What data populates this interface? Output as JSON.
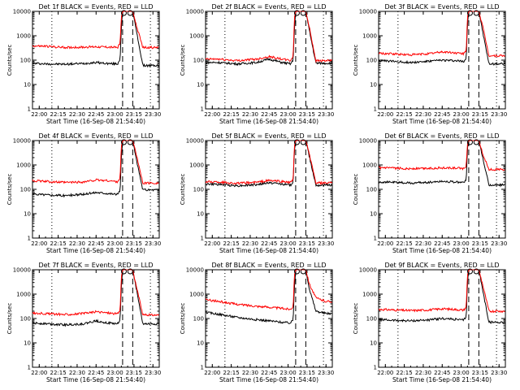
{
  "figure": {
    "background": "#ffffff",
    "events_color": "#000000",
    "lld_color": "#ff0000"
  },
  "chart_data": [
    {
      "type": "line",
      "title": "Det 1f BLACK = Events, RED = LLD",
      "xlabel": "Start Time (16-Sep-08 21:54:40)",
      "ylabel": "Counts/sec",
      "x_ticks": [
        "22:00",
        "22:15",
        "22:30",
        "22:45",
        "23:00",
        "23:15",
        "23:30"
      ],
      "y_ticks": [
        "1",
        "10",
        "100",
        "1000",
        "10000"
      ],
      "y_scale": "log",
      "ylim": [
        1,
        10000
      ],
      "markers": [
        "22:10",
        "23:06",
        "23:14",
        "23:28"
      ],
      "series": [
        {
          "x": [
            "21:54",
            "22:05",
            "22:20",
            "22:35",
            "22:45",
            "22:55",
            "23:02",
            "23:04",
            "23:05",
            "23:06",
            "23:10",
            "23:14",
            "23:17",
            "23:22",
            "23:30"
          ],
          "y": [
            75,
            70,
            68,
            73,
            80,
            72,
            70,
            110,
            2000,
            10000,
            10000,
            10000,
            1500,
            60,
            60
          ]
        },
        {
          "x": [
            "21:54",
            "22:05",
            "22:20",
            "22:35",
            "22:45",
            "22:55",
            "23:02",
            "23:04",
            "23:05",
            "23:06",
            "23:10",
            "23:14",
            "23:17",
            "23:22",
            "23:30"
          ],
          "y": [
            380,
            370,
            330,
            340,
            355,
            340,
            330,
            500,
            6000,
            10000,
            10000,
            10000,
            2500,
            330,
            330
          ]
        }
      ]
    },
    {
      "type": "line",
      "title": "Det 2f BLACK = Events, RED = LLD",
      "xlabel": "Start Time (16-Sep-08 21:54:40)",
      "ylabel": "Counts/sec",
      "x_ticks": [
        "22:00",
        "22:15",
        "22:30",
        "22:45",
        "23:00",
        "23:15",
        "23:30"
      ],
      "y_ticks": [
        "1",
        "10",
        "100",
        "1000",
        "10000"
      ],
      "y_scale": "log",
      "ylim": [
        1,
        10000
      ],
      "markers": [
        "22:10",
        "23:06",
        "23:14",
        "23:28"
      ],
      "series": [
        {
          "x": [
            "21:54",
            "22:05",
            "22:20",
            "22:35",
            "22:45",
            "22:55",
            "23:02",
            "23:04",
            "23:05",
            "23:06",
            "23:10",
            "23:14",
            "23:17",
            "23:22",
            "23:30"
          ],
          "y": [
            80,
            80,
            70,
            80,
            110,
            80,
            70,
            100,
            2000,
            10000,
            10000,
            10000,
            1500,
            75,
            75
          ]
        },
        {
          "x": [
            "21:54",
            "22:05",
            "22:20",
            "22:35",
            "22:45",
            "22:55",
            "23:02",
            "23:04",
            "23:05",
            "23:06",
            "23:10",
            "23:14",
            "23:17",
            "23:22",
            "23:30"
          ],
          "y": [
            110,
            110,
            95,
            110,
            140,
            110,
            95,
            150,
            5000,
            10000,
            10000,
            10000,
            2000,
            95,
            95
          ]
        }
      ]
    },
    {
      "type": "line",
      "title": "Det 3f BLACK = Events, RED = LLD",
      "xlabel": "Start Time (16-Sep-08 21:54:40)",
      "ylabel": "Counts/sec",
      "x_ticks": [
        "22:00",
        "22:15",
        "22:30",
        "22:45",
        "23:00",
        "23:15",
        "23:30"
      ],
      "y_ticks": [
        "1",
        "10",
        "100",
        "1000",
        "10000"
      ],
      "y_scale": "log",
      "ylim": [
        1,
        10000
      ],
      "markers": [
        "22:10",
        "23:06",
        "23:14",
        "23:28"
      ],
      "series": [
        {
          "x": [
            "21:54",
            "22:05",
            "22:20",
            "22:35",
            "22:45",
            "22:55",
            "23:02",
            "23:04",
            "23:05",
            "23:06",
            "23:10",
            "23:14",
            "23:17",
            "23:22",
            "23:30"
          ],
          "y": [
            95,
            90,
            80,
            90,
            100,
            95,
            90,
            120,
            3000,
            10000,
            10000,
            10000,
            1500,
            70,
            70
          ]
        },
        {
          "x": [
            "21:54",
            "22:05",
            "22:20",
            "22:35",
            "22:45",
            "22:55",
            "23:02",
            "23:04",
            "23:05",
            "23:06",
            "23:10",
            "23:14",
            "23:17",
            "23:22",
            "23:30"
          ],
          "y": [
            190,
            180,
            165,
            185,
            220,
            200,
            180,
            250,
            6000,
            10000,
            10000,
            10000,
            2500,
            150,
            150
          ]
        }
      ]
    },
    {
      "type": "line",
      "title": "Det 4f BLACK = Events, RED = LLD",
      "xlabel": "Start Time (16-Sep-08 21:54:40)",
      "ylabel": "Counts/sec",
      "x_ticks": [
        "22:00",
        "22:15",
        "22:30",
        "22:45",
        "23:00",
        "23:15",
        "23:30"
      ],
      "y_ticks": [
        "1",
        "10",
        "100",
        "1000",
        "10000"
      ],
      "y_scale": "log",
      "ylim": [
        1,
        10000
      ],
      "markers": [
        "22:10",
        "23:06",
        "23:14",
        "23:28"
      ],
      "series": [
        {
          "x": [
            "21:54",
            "22:05",
            "22:20",
            "22:35",
            "22:45",
            "22:55",
            "23:02",
            "23:04",
            "23:05",
            "23:06",
            "23:10",
            "23:14",
            "23:17",
            "23:22",
            "23:30"
          ],
          "y": [
            65,
            60,
            55,
            62,
            75,
            68,
            62,
            90,
            2000,
            10000,
            10000,
            10000,
            1500,
            95,
            95
          ]
        },
        {
          "x": [
            "21:54",
            "22:05",
            "22:20",
            "22:35",
            "22:45",
            "22:55",
            "23:02",
            "23:04",
            "23:05",
            "23:06",
            "23:10",
            "23:14",
            "23:17",
            "23:22",
            "23:30"
          ],
          "y": [
            230,
            210,
            190,
            200,
            240,
            225,
            205,
            300,
            6000,
            10000,
            10000,
            10000,
            2500,
            180,
            180
          ]
        }
      ]
    },
    {
      "type": "line",
      "title": "Det 5f BLACK = Events, RED = LLD",
      "xlabel": "Start Time (16-Sep-08 21:54:40)",
      "ylabel": "Counts/sec",
      "x_ticks": [
        "22:00",
        "22:15",
        "22:30",
        "22:45",
        "23:00",
        "23:15",
        "23:30"
      ],
      "y_ticks": [
        "1",
        "10",
        "100",
        "1000",
        "10000"
      ],
      "y_scale": "log",
      "ylim": [
        1,
        10000
      ],
      "markers": [
        "22:10",
        "23:06",
        "23:14",
        "23:28"
      ],
      "series": [
        {
          "x": [
            "21:54",
            "22:05",
            "22:20",
            "22:35",
            "22:45",
            "22:55",
            "23:02",
            "23:04",
            "23:05",
            "23:06",
            "23:10",
            "23:14",
            "23:17",
            "23:22",
            "23:30"
          ],
          "y": [
            165,
            160,
            140,
            155,
            185,
            165,
            150,
            200,
            4000,
            10000,
            10000,
            10000,
            2000,
            150,
            150
          ]
        },
        {
          "x": [
            "21:54",
            "22:05",
            "22:20",
            "22:35",
            "22:45",
            "22:55",
            "23:02",
            "23:04",
            "23:05",
            "23:06",
            "23:10",
            "23:14",
            "23:17",
            "23:22",
            "23:30"
          ],
          "y": [
            205,
            200,
            175,
            195,
            230,
            210,
            190,
            260,
            6000,
            10000,
            10000,
            10000,
            2500,
            180,
            180
          ]
        }
      ]
    },
    {
      "type": "line",
      "title": "Det 6f BLACK = Events, RED = LLD",
      "xlabel": "Start Time (16-Sep-08 21:54:40)",
      "ylabel": "Counts/sec",
      "x_ticks": [
        "22:00",
        "22:15",
        "22:30",
        "22:45",
        "23:00",
        "23:15",
        "23:30"
      ],
      "y_ticks": [
        "1",
        "10",
        "100",
        "1000",
        "10000"
      ],
      "y_scale": "log",
      "ylim": [
        1,
        10000
      ],
      "markers": [
        "22:10",
        "23:06",
        "23:14",
        "23:28"
      ],
      "series": [
        {
          "x": [
            "21:54",
            "22:05",
            "22:20",
            "22:35",
            "22:45",
            "22:55",
            "23:02",
            "23:04",
            "23:05",
            "23:06",
            "23:10",
            "23:14",
            "23:17",
            "23:22",
            "23:30"
          ],
          "y": [
            200,
            195,
            180,
            195,
            215,
            200,
            190,
            250,
            5000,
            10000,
            10000,
            10000,
            2000,
            150,
            150
          ]
        },
        {
          "x": [
            "21:54",
            "22:05",
            "22:20",
            "22:35",
            "22:45",
            "22:55",
            "23:02",
            "23:04",
            "23:05",
            "23:06",
            "23:10",
            "23:14",
            "23:17",
            "23:22",
            "23:30"
          ],
          "y": [
            760,
            740,
            700,
            730,
            760,
            740,
            720,
            900,
            8000,
            10000,
            10000,
            10000,
            3000,
            650,
            650
          ]
        }
      ]
    },
    {
      "type": "line",
      "title": "Det 7f BLACK = Events, RED = LLD",
      "xlabel": "Start Time (16-Sep-08 21:54:40)",
      "ylabel": "Counts/sec",
      "x_ticks": [
        "22:00",
        "22:15",
        "22:30",
        "22:45",
        "23:00",
        "23:15",
        "23:30"
      ],
      "y_ticks": [
        "1",
        "10",
        "100",
        "1000",
        "10000"
      ],
      "y_scale": "log",
      "ylim": [
        1,
        10000
      ],
      "markers": [
        "22:10",
        "23:06",
        "23:14",
        "23:28"
      ],
      "series": [
        {
          "x": [
            "21:54",
            "22:05",
            "22:20",
            "22:35",
            "22:45",
            "22:55",
            "23:02",
            "23:04",
            "23:05",
            "23:06",
            "23:10",
            "23:14",
            "23:17",
            "23:22",
            "23:30"
          ],
          "y": [
            65,
            62,
            55,
            60,
            80,
            65,
            60,
            90,
            2000,
            10000,
            10000,
            10000,
            1500,
            60,
            60
          ]
        },
        {
          "x": [
            "21:54",
            "22:05",
            "22:20",
            "22:35",
            "22:45",
            "22:55",
            "23:02",
            "23:04",
            "23:05",
            "23:06",
            "23:10",
            "23:14",
            "23:17",
            "23:22",
            "23:30"
          ],
          "y": [
            165,
            160,
            145,
            160,
            190,
            170,
            155,
            220,
            5000,
            10000,
            10000,
            10000,
            2000,
            140,
            140
          ]
        }
      ]
    },
    {
      "type": "line",
      "title": "Det 8f BLACK = Events, RED = LLD",
      "xlabel": "Start Time (16-Sep-08 21:54:40)",
      "ylabel": "Counts/sec",
      "x_ticks": [
        "22:00",
        "22:15",
        "22:30",
        "22:45",
        "23:00",
        "23:15",
        "23:30"
      ],
      "y_ticks": [
        "1",
        "10",
        "100",
        "1000",
        "10000"
      ],
      "y_scale": "log",
      "ylim": [
        1,
        10000
      ],
      "markers": [
        "22:10",
        "23:06",
        "23:14",
        "23:28"
      ],
      "series": [
        {
          "x": [
            "21:54",
            "22:05",
            "22:20",
            "22:35",
            "22:45",
            "22:55",
            "23:02",
            "23:04",
            "23:05",
            "23:06",
            "23:10",
            "23:14",
            "23:17",
            "23:22",
            "23:30"
          ],
          "y": [
            180,
            150,
            110,
            90,
            80,
            70,
            65,
            90,
            2000,
            10000,
            10000,
            10000,
            1500,
            200,
            160
          ]
        },
        {
          "x": [
            "21:54",
            "22:05",
            "22:20",
            "22:35",
            "22:45",
            "22:55",
            "23:02",
            "23:04",
            "23:05",
            "23:06",
            "23:10",
            "23:14",
            "23:17",
            "23:22",
            "23:30"
          ],
          "y": [
            600,
            500,
            380,
            320,
            290,
            260,
            240,
            320,
            6000,
            10000,
            10000,
            10000,
            2500,
            700,
            500
          ]
        }
      ]
    },
    {
      "type": "line",
      "title": "Det 9f BLACK = Events, RED = LLD",
      "xlabel": "Start Time (16-Sep-08 21:54:40)",
      "ylabel": "Counts/sec",
      "x_ticks": [
        "22:00",
        "22:15",
        "22:30",
        "22:45",
        "23:00",
        "23:15",
        "23:30"
      ],
      "y_ticks": [
        "1",
        "10",
        "100",
        "1000",
        "10000"
      ],
      "y_scale": "log",
      "ylim": [
        1,
        10000
      ],
      "markers": [
        "22:10",
        "23:06",
        "23:14",
        "23:28"
      ],
      "series": [
        {
          "x": [
            "21:54",
            "22:05",
            "22:20",
            "22:35",
            "22:45",
            "22:55",
            "23:02",
            "23:04",
            "23:05",
            "23:06",
            "23:10",
            "23:14",
            "23:17",
            "23:22",
            "23:30"
          ],
          "y": [
            90,
            85,
            80,
            88,
            100,
            92,
            85,
            120,
            3000,
            10000,
            10000,
            10000,
            1500,
            70,
            70
          ]
        },
        {
          "x": [
            "21:54",
            "22:05",
            "22:20",
            "22:35",
            "22:45",
            "22:55",
            "23:02",
            "23:04",
            "23:05",
            "23:06",
            "23:10",
            "23:14",
            "23:17",
            "23:22",
            "23:30"
          ],
          "y": [
            240,
            225,
            210,
            225,
            250,
            235,
            220,
            300,
            6000,
            10000,
            10000,
            10000,
            2500,
            200,
            200
          ]
        }
      ]
    }
  ]
}
